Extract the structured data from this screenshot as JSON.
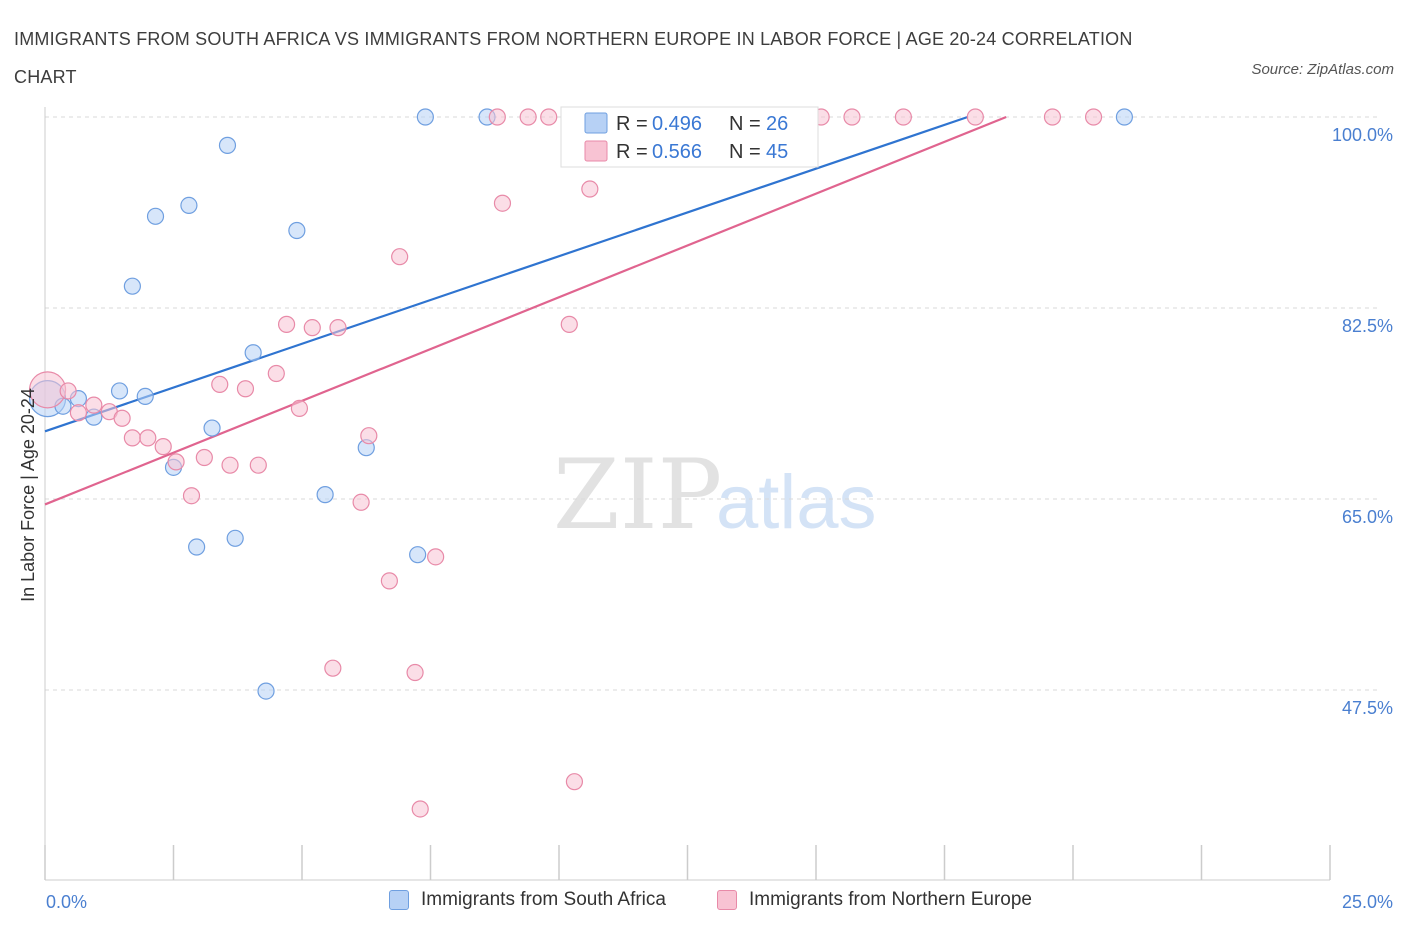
{
  "title": "IMMIGRANTS FROM SOUTH AFRICA VS IMMIGRANTS FROM NORTHERN EUROPE IN LABOR FORCE | AGE 20-24 CORRELATION CHART",
  "source": "Source: ZipAtlas.com",
  "watermark": {
    "zip": "ZIP",
    "atlas": "atlas"
  },
  "colors": {
    "blue_fill": "#b7d1f5",
    "blue_stroke": "#6f9fe0",
    "blue_line": "#2f74d0",
    "pink_fill": "#f8c3d3",
    "pink_stroke": "#e88aa8",
    "pink_line": "#e0648f",
    "tick_text": "#4a7fd0",
    "grid": "#d9d9d9"
  },
  "legend_top": {
    "rows": [
      {
        "r_label": "R =",
        "r_value": "0.496",
        "n_label": "N =",
        "n_value": "26"
      },
      {
        "r_label": "R =",
        "r_value": "0.566",
        "n_label": "N =",
        "n_value": "45"
      }
    ]
  },
  "chart_data": {
    "type": "scatter",
    "title": "IMMIGRANTS FROM SOUTH AFRICA VS IMMIGRANTS FROM NORTHERN EUROPE IN LABOR FORCE | AGE 20-24 CORRELATION CHART",
    "xlabel": "",
    "ylabel": "In Labor Force | Age 20-24",
    "xlim": [
      0,
      25
    ],
    "ylim": [
      30,
      101.5
    ],
    "x_tick_labels": [
      "0.0%",
      "25.0%"
    ],
    "y_ticks": [
      100,
      82.5,
      65,
      47.5
    ],
    "y_tick_labels": [
      "100.0%",
      "82.5%",
      "65.0%",
      "47.5%"
    ],
    "grid": "horizontal dashed",
    "legend_placement": "bottom",
    "series": [
      {
        "name": "Immigrants from South Africa",
        "color": "#6f9fe0",
        "r": 0.496,
        "n": 26,
        "trend": {
          "x0": 0,
          "y0": 71.2,
          "x1": 17.95,
          "y1": 100
        },
        "points": [
          {
            "x": 0.05,
            "y": 74.2,
            "size": "large"
          },
          {
            "x": 0.35,
            "y": 73.5
          },
          {
            "x": 0.65,
            "y": 74.2
          },
          {
            "x": 0.95,
            "y": 72.5
          },
          {
            "x": 1.45,
            "y": 74.9
          },
          {
            "x": 1.95,
            "y": 74.4
          },
          {
            "x": 1.7,
            "y": 84.5
          },
          {
            "x": 2.15,
            "y": 90.9
          },
          {
            "x": 2.8,
            "y": 91.9
          },
          {
            "x": 3.55,
            "y": 97.4
          },
          {
            "x": 4.05,
            "y": 78.4
          },
          {
            "x": 3.25,
            "y": 71.5
          },
          {
            "x": 2.5,
            "y": 67.9
          },
          {
            "x": 2.95,
            "y": 60.6
          },
          {
            "x": 3.7,
            "y": 61.4
          },
          {
            "x": 4.3,
            "y": 47.4
          },
          {
            "x": 4.9,
            "y": 89.6
          },
          {
            "x": 5.45,
            "y": 65.4
          },
          {
            "x": 6.25,
            "y": 69.7
          },
          {
            "x": 7.25,
            "y": 59.9
          },
          {
            "x": 7.4,
            "y": 100
          },
          {
            "x": 8.6,
            "y": 100
          },
          {
            "x": 10.65,
            "y": 100
          },
          {
            "x": 10.9,
            "y": 100
          },
          {
            "x": 13.85,
            "y": 100
          },
          {
            "x": 21.0,
            "y": 100
          }
        ]
      },
      {
        "name": "Immigrants from Northern Europe",
        "color": "#e88aa8",
        "r": 0.566,
        "n": 45,
        "trend": {
          "x0": 0,
          "y0": 64.5,
          "x1": 18.7,
          "y1": 100
        },
        "points": [
          {
            "x": 0.05,
            "y": 75.0,
            "size": "large"
          },
          {
            "x": 0.45,
            "y": 74.9
          },
          {
            "x": 0.65,
            "y": 72.9
          },
          {
            "x": 0.95,
            "y": 73.6
          },
          {
            "x": 1.25,
            "y": 73.0
          },
          {
            "x": 1.5,
            "y": 72.4
          },
          {
            "x": 1.7,
            "y": 70.6
          },
          {
            "x": 2.0,
            "y": 70.6
          },
          {
            "x": 2.3,
            "y": 69.8
          },
          {
            "x": 2.55,
            "y": 68.4
          },
          {
            "x": 2.85,
            "y": 65.3
          },
          {
            "x": 3.1,
            "y": 68.8
          },
          {
            "x": 3.4,
            "y": 75.5
          },
          {
            "x": 3.6,
            "y": 68.1
          },
          {
            "x": 3.9,
            "y": 75.1
          },
          {
            "x": 4.15,
            "y": 68.1
          },
          {
            "x": 4.5,
            "y": 76.5
          },
          {
            "x": 4.7,
            "y": 81.0
          },
          {
            "x": 4.95,
            "y": 73.3
          },
          {
            "x": 5.2,
            "y": 80.7
          },
          {
            "x": 5.7,
            "y": 80.7
          },
          {
            "x": 5.6,
            "y": 49.5
          },
          {
            "x": 6.15,
            "y": 64.7
          },
          {
            "x": 6.3,
            "y": 70.8
          },
          {
            "x": 6.7,
            "y": 57.5
          },
          {
            "x": 6.9,
            "y": 87.2
          },
          {
            "x": 7.2,
            "y": 49.1
          },
          {
            "x": 7.3,
            "y": 36.6
          },
          {
            "x": 7.6,
            "y": 59.7
          },
          {
            "x": 8.9,
            "y": 92.1
          },
          {
            "x": 9.4,
            "y": 100
          },
          {
            "x": 9.8,
            "y": 100
          },
          {
            "x": 10.2,
            "y": 81.0
          },
          {
            "x": 10.3,
            "y": 39.1
          },
          {
            "x": 10.6,
            "y": 93.4
          },
          {
            "x": 14.1,
            "y": 100
          },
          {
            "x": 14.6,
            "y": 100
          },
          {
            "x": 15.1,
            "y": 100
          },
          {
            "x": 16.7,
            "y": 100
          },
          {
            "x": 19.6,
            "y": 100
          },
          {
            "x": 20.4,
            "y": 100
          },
          {
            "x": 15.7,
            "y": 100
          },
          {
            "x": 8.8,
            "y": 100
          },
          {
            "x": 11.4,
            "y": 100
          },
          {
            "x": 18.1,
            "y": 100
          }
        ]
      }
    ]
  }
}
